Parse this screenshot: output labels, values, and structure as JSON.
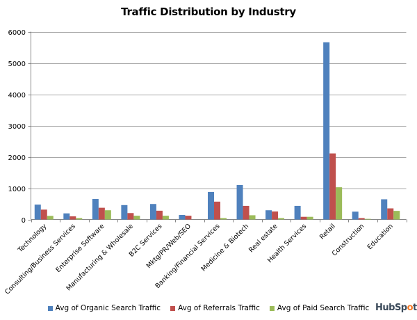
{
  "chart_data": {
    "type": "bar",
    "title": "Traffic Distribution by Industry",
    "xlabel": "",
    "ylabel": "",
    "ylim": [
      0,
      6000
    ],
    "yticks": [
      0,
      1000,
      2000,
      3000,
      4000,
      5000,
      6000
    ],
    "grid": true,
    "legend_position": "bottom",
    "categories": [
      "Technology",
      "Consulting/Business Services",
      "Enterprise Software",
      "Manufacturing & Wholesale",
      "B2C Services",
      "Mktg/PR/Web/SEO",
      "Banking/Financial Services",
      "Medicine & Biotech",
      "Real estate",
      "Health Services",
      "Retail",
      "Construction",
      "Education"
    ],
    "series": [
      {
        "name": "Avg of Organic Search Traffic",
        "color": "#4f81bd",
        "values": [
          475,
          195,
          655,
          460,
          495,
          145,
          880,
          1100,
          295,
          435,
          5660,
          250,
          645
        ]
      },
      {
        "name": "Avg of Referrals Traffic",
        "color": "#c0504d",
        "values": [
          315,
          100,
          375,
          205,
          280,
          120,
          570,
          435,
          255,
          85,
          2110,
          45,
          355
        ]
      },
      {
        "name": "Avg of Paid Search Traffic",
        "color": "#9bbb59",
        "values": [
          115,
          45,
          295,
          120,
          120,
          0,
          45,
          135,
          45,
          85,
          1030,
          20,
          275
        ]
      }
    ]
  },
  "branding": {
    "logo_text_before": "HubSp",
    "logo_o": "o",
    "logo_text_after": "t"
  }
}
